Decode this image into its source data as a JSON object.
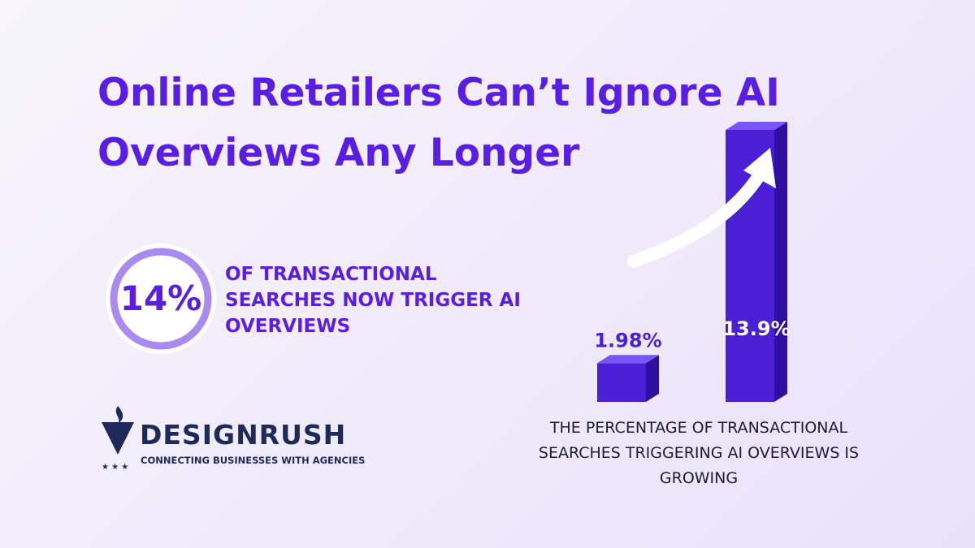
{
  "header": {
    "title": "Online Retailers Can’t Ignore AI Overviews Any Longer"
  },
  "stat": {
    "value": "14%",
    "text": "OF TRANSACTIONAL SEARCHES NOW TRIGGER AI OVERVIEWS"
  },
  "chart_data": {
    "type": "bar",
    "values": [
      1.98,
      13.9
    ],
    "value_labels": [
      "1.98%",
      "13.9%"
    ],
    "color": "#4a1fd6",
    "caption": "THE PERCENTAGE OF TRANSACTIONAL SEARCHES TRIGGERING AI OVERVIEWS IS GROWING"
  },
  "brand": {
    "name": "DESIGNRUSH",
    "tagline": "CONNECTING BUSINESSES WITH AGENCIES"
  }
}
